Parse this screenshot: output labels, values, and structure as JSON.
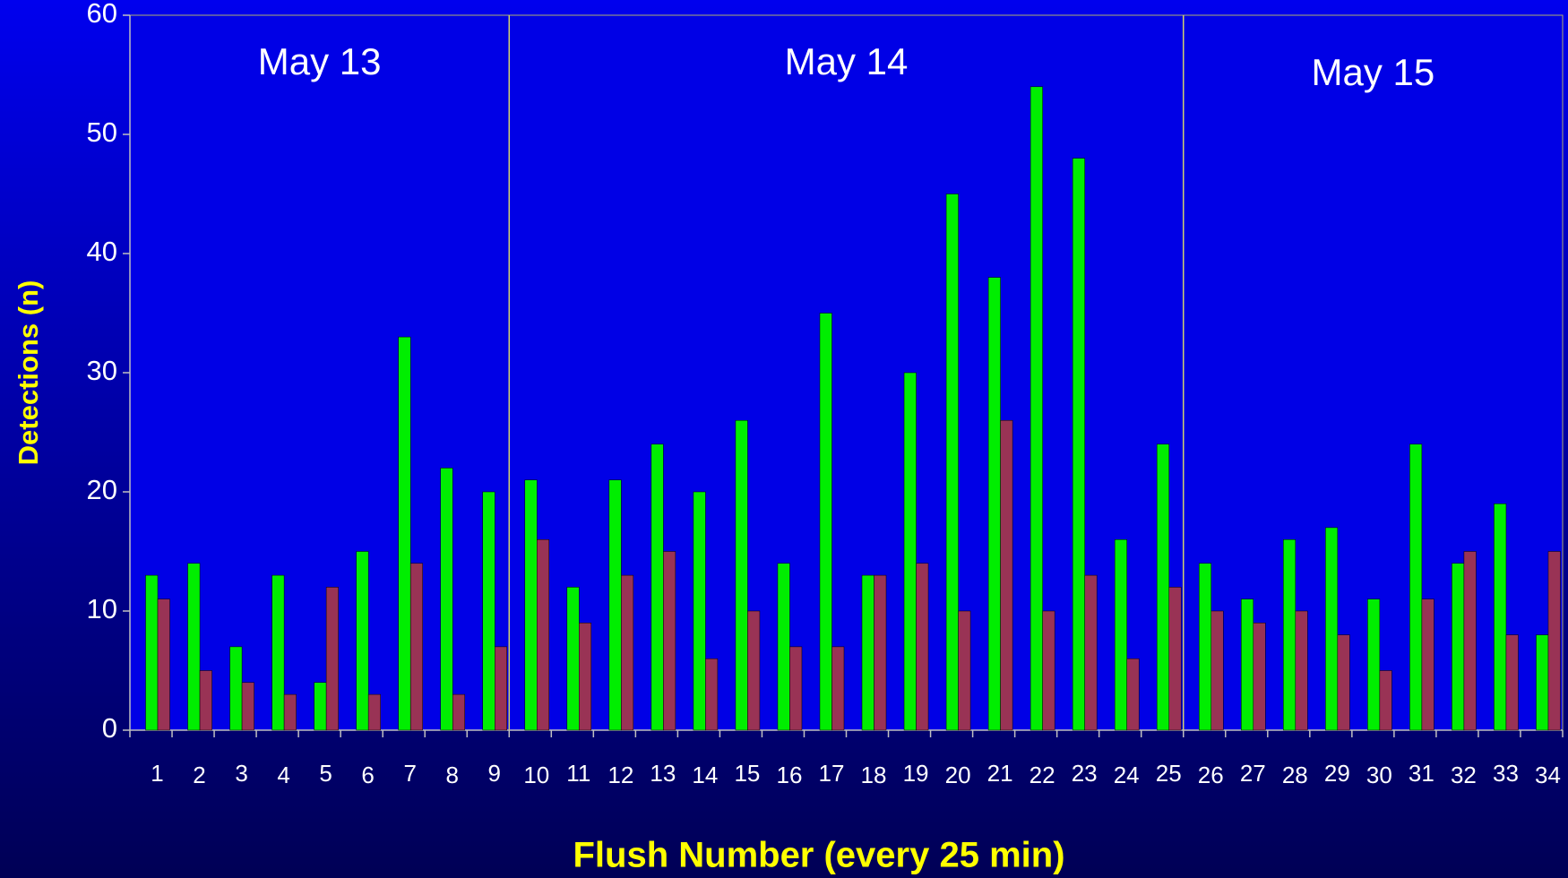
{
  "chart_data": {
    "type": "bar",
    "x_label": "Flush Number (every 25 min)",
    "y_label": "Detections (n)",
    "categories": [
      "1",
      "2",
      "3",
      "4",
      "5",
      "6",
      "7",
      "8",
      "9",
      "10",
      "11",
      "12",
      "13",
      "14",
      "15",
      "16",
      "17",
      "18",
      "19",
      "20",
      "21",
      "22",
      "23",
      "24",
      "25",
      "26",
      "27",
      "28",
      "29",
      "30",
      "31",
      "32",
      "33",
      "34"
    ],
    "series": [
      {
        "color": "#00ee00",
        "values": [
          13,
          14,
          7,
          13,
          4,
          15,
          33,
          22,
          20,
          21,
          12,
          21,
          24,
          20,
          26,
          14,
          35,
          13,
          30,
          45,
          38,
          54,
          48,
          16,
          24,
          14,
          11,
          16,
          17,
          11,
          24,
          14,
          19,
          8
        ]
      },
      {
        "color": "#993355",
        "values": [
          11,
          5,
          4,
          3,
          12,
          3,
          14,
          3,
          7,
          16,
          9,
          13,
          15,
          6,
          10,
          7,
          7,
          13,
          14,
          10,
          26,
          10,
          13,
          6,
          12,
          10,
          9,
          10,
          8,
          5,
          11,
          15,
          8,
          15
        ]
      }
    ],
    "periods": [
      {
        "label": "May 13",
        "from": "1",
        "to": "9"
      },
      {
        "label": "May 14",
        "from": "10",
        "to": "25"
      },
      {
        "label": "May 15",
        "from": "26",
        "to": "34"
      }
    ],
    "ylim": [
      0,
      60
    ],
    "yticks": [
      0,
      10,
      20,
      30,
      40,
      50,
      60
    ]
  }
}
